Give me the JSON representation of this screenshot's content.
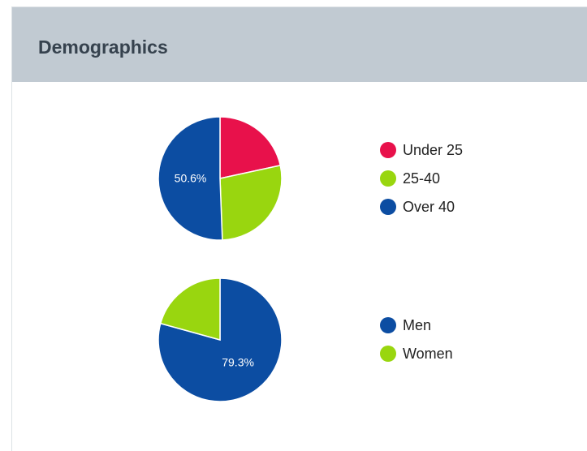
{
  "header": {
    "title": "Demographics"
  },
  "chart_data": [
    {
      "type": "pie",
      "categories": [
        "Under 25",
        "25-40",
        "Over 40"
      ],
      "values": [
        21.6,
        27.8,
        50.6
      ],
      "value_labels": [
        null,
        null,
        "50.6%"
      ],
      "colors": [
        "#e8114b",
        "#99d60f",
        "#0c4da2"
      ]
    },
    {
      "type": "pie",
      "categories": [
        "Men",
        "Women"
      ],
      "values": [
        79.3,
        20.7
      ],
      "value_labels": [
        "79.3%",
        null
      ],
      "colors": [
        "#0c4da2",
        "#99d60f"
      ]
    }
  ]
}
